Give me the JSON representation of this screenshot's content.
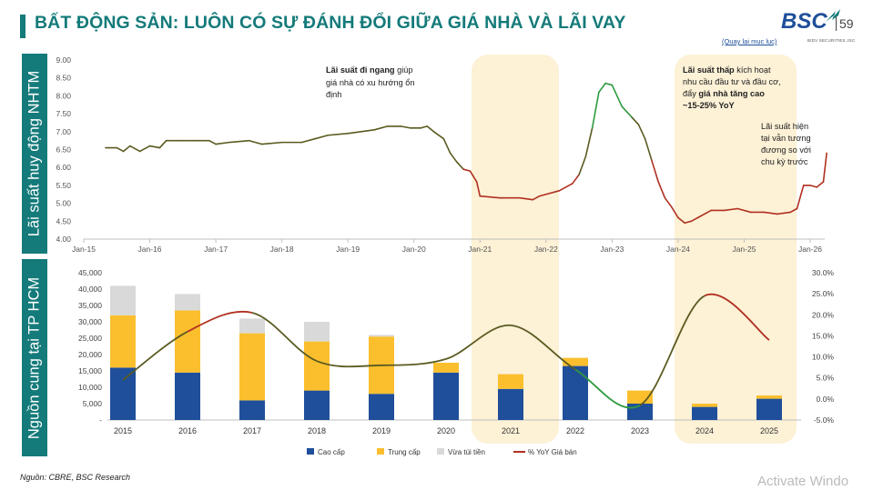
{
  "header": {
    "title": "BẤT ĐỘNG SẢN: LUÔN CÓ SỰ ĐÁNH ĐỔI GIỮA GIÁ NHÀ VÀ LÃI VAY",
    "logo": "BSC",
    "logo_sub": "BIDV SECURITIES JSC",
    "page_number": "59",
    "back_link": "(Quay lại mục lục)"
  },
  "side_labels": {
    "top": "Lãi suất huy động NHTM",
    "bottom": "Nguồn cung tại TP HCM"
  },
  "annotations": {
    "a1_line1_bold": "Lãi suất đi ngang",
    "a1_line1_rest": " giúp",
    "a1_line2": "giá nhà có xu hướng ổn",
    "a1_line3": "định",
    "a2_line1_bold": "Lãi suất thấp",
    "a2_line1_rest": " kích hoạt",
    "a2_line2": "nhu cầu đầu tư và đầu cơ,",
    "a2_line3_rest": "đẩy ",
    "a2_line3_bold": "giá nhà tăng cao",
    "a2_line4": "~15-25% YoY",
    "a3_line1": "Lãi suất hiện",
    "a3_line2": "tại vẫn tương",
    "a3_line3": "đương so với",
    "a3_line4": "chu kỳ trước"
  },
  "footer": {
    "source": "Nguồn: CBRE, BSC Research",
    "watermark": "Activate Windo"
  },
  "colors": {
    "teal": "#147a7a",
    "cao_cap": "#1f4f9a",
    "trung_cap": "#fbbf2e",
    "vua_tui_tien": "#d9d9d9",
    "highlight": "#fdf1d6",
    "rate_line": "#5a5a20",
    "rate_low": "#b03020",
    "rate_high": "#2e9a3e"
  },
  "chart_data": [
    {
      "type": "line",
      "ylim": [
        4.0,
        9.0
      ],
      "yticks": [
        "4.00",
        "4.50",
        "5.00",
        "5.50",
        "6.00",
        "6.50",
        "7.00",
        "7.50",
        "8.00",
        "8.50",
        "9.00"
      ],
      "xticks": [
        "Jan-15",
        "Jan-16",
        "Jan-17",
        "Jan-18",
        "Jan-19",
        "Jan-20",
        "Jan-21",
        "Jan-22",
        "Jan-23",
        "Jan-24",
        "Jan-25",
        "Jan-26"
      ],
      "series": [
        {
          "points": [
            [
              2015.33,
              6.55
            ],
            [
              2015.5,
              6.55
            ],
            [
              2015.6,
              6.45
            ],
            [
              2015.7,
              6.6
            ],
            [
              2015.85,
              6.45
            ],
            [
              2016.0,
              6.6
            ],
            [
              2016.15,
              6.55
            ],
            [
              2016.25,
              6.75
            ],
            [
              2016.5,
              6.75
            ],
            [
              2016.7,
              6.75
            ],
            [
              2016.9,
              6.75
            ],
            [
              2017.0,
              6.65
            ],
            [
              2017.2,
              6.7
            ],
            [
              2017.5,
              6.75
            ],
            [
              2017.7,
              6.65
            ],
            [
              2018.0,
              6.7
            ],
            [
              2018.3,
              6.7
            ],
            [
              2018.5,
              6.8
            ],
            [
              2018.7,
              6.9
            ],
            [
              2019.0,
              6.95
            ],
            [
              2019.2,
              7.0
            ],
            [
              2019.4,
              7.05
            ],
            [
              2019.6,
              7.15
            ],
            [
              2019.8,
              7.15
            ],
            [
              2019.95,
              7.1
            ],
            [
              2020.1,
              7.1
            ],
            [
              2020.2,
              7.15
            ],
            [
              2020.3,
              7.0
            ],
            [
              2020.45,
              6.8
            ],
            [
              2020.55,
              6.4
            ],
            [
              2020.65,
              6.15
            ],
            [
              2020.75,
              5.95
            ],
            [
              2020.85,
              5.9
            ],
            [
              2020.95,
              5.6
            ],
            [
              2021.0,
              5.2
            ],
            [
              2021.3,
              5.15
            ],
            [
              2021.6,
              5.15
            ],
            [
              2021.8,
              5.1
            ],
            [
              2021.9,
              5.2
            ],
            [
              2022.0,
              5.25
            ],
            [
              2022.2,
              5.35
            ],
            [
              2022.4,
              5.55
            ],
            [
              2022.5,
              5.8
            ],
            [
              2022.6,
              6.3
            ],
            [
              2022.7,
              7.1
            ],
            [
              2022.8,
              8.1
            ],
            [
              2022.9,
              8.35
            ],
            [
              2023.0,
              8.3
            ],
            [
              2023.15,
              7.7
            ],
            [
              2023.3,
              7.4
            ],
            [
              2023.4,
              7.2
            ],
            [
              2023.5,
              6.8
            ],
            [
              2023.6,
              6.2
            ],
            [
              2023.7,
              5.6
            ],
            [
              2023.8,
              5.15
            ],
            [
              2023.9,
              4.9
            ],
            [
              2024.0,
              4.6
            ],
            [
              2024.1,
              4.45
            ],
            [
              2024.2,
              4.5
            ],
            [
              2024.3,
              4.6
            ],
            [
              2024.5,
              4.8
            ],
            [
              2024.7,
              4.8
            ],
            [
              2024.9,
              4.85
            ],
            [
              2025.1,
              4.75
            ],
            [
              2025.3,
              4.75
            ],
            [
              2025.5,
              4.7
            ],
            [
              2025.7,
              4.75
            ],
            [
              2025.8,
              4.85
            ],
            [
              2025.9,
              5.5
            ],
            [
              2026.0,
              5.5
            ],
            [
              2026.1,
              5.45
            ],
            [
              2026.2,
              5.6
            ],
            [
              2026.25,
              6.4
            ]
          ]
        }
      ]
    },
    {
      "type": "bar",
      "stacked": true,
      "categories": [
        "2015",
        "2016",
        "2017",
        "2018",
        "2019",
        "2020",
        "2021",
        "2022",
        "2023",
        "2024",
        "2025"
      ],
      "ylim": [
        0,
        45000
      ],
      "yticks": [
        "-",
        "5,000",
        "10,000",
        "15,000",
        "20,000",
        "25,000",
        "30,000",
        "35,000",
        "40,000",
        "45,000"
      ],
      "y2lim": [
        -5.0,
        30.0
      ],
      "y2ticks": [
        "-5.0%",
        "0.0%",
        "5.0%",
        "10.0%",
        "15.0%",
        "20.0%",
        "25.0%",
        "30.0%"
      ],
      "legend": [
        "Cao cấp",
        "Trung cấp",
        "Vừa túi tiền",
        "% YoY Giá bán"
      ],
      "series": [
        {
          "name": "Cao cấp",
          "values": [
            16000,
            14500,
            6000,
            9000,
            8000,
            14500,
            9500,
            16500,
            5000,
            4000,
            6500
          ]
        },
        {
          "name": "Trung cấp",
          "values": [
            16000,
            19000,
            20500,
            15000,
            17500,
            3000,
            4500,
            2500,
            4000,
            1000,
            1000
          ]
        },
        {
          "name": "Vừa túi tiền",
          "values": [
            9000,
            5000,
            4500,
            6000,
            500,
            0,
            0,
            0,
            0,
            0,
            0
          ]
        }
      ],
      "line": {
        "name": "% YoY Giá bán",
        "values": [
          4.5,
          16.0,
          20.5,
          9.0,
          8.0,
          9.5,
          17.5,
          7.0,
          -1.5,
          24.5,
          14.0
        ]
      }
    }
  ]
}
